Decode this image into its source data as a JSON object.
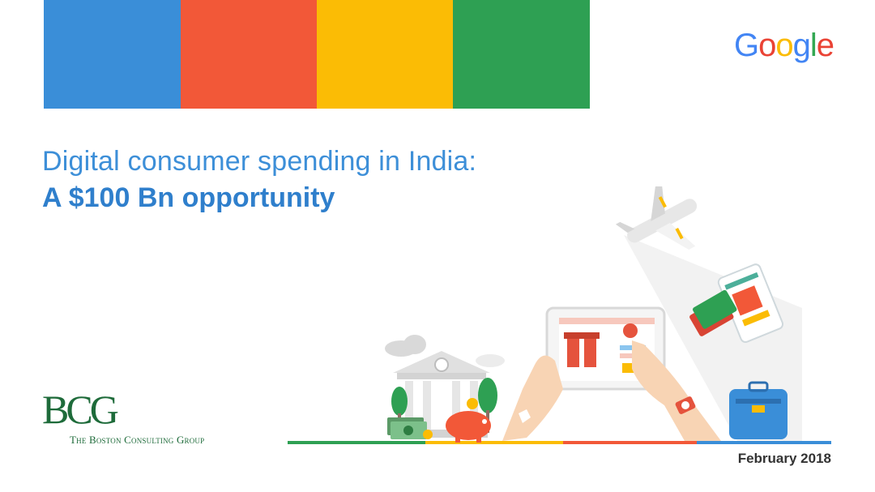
{
  "colors": {
    "blue": "#3a8ed8",
    "red": "#f25838",
    "yellow": "#fbbc05",
    "green": "#2ea053",
    "title_blue": "#3d8fd8",
    "bcg_green": "#1e6b3a"
  },
  "header": {
    "stripes": [
      "blue",
      "red",
      "yellow",
      "green"
    ]
  },
  "logo": {
    "google_letters": [
      {
        "char": "G",
        "color": "#4285f4"
      },
      {
        "char": "o",
        "color": "#ea4335"
      },
      {
        "char": "o",
        "color": "#fbbc05"
      },
      {
        "char": "g",
        "color": "#4285f4"
      },
      {
        "char": "l",
        "color": "#34a853"
      },
      {
        "char": "e",
        "color": "#ea4335"
      }
    ]
  },
  "title": {
    "line1": "Digital consumer spending in India:",
    "line2": "A $100 Bn opportunity"
  },
  "bcg": {
    "mark": "BCG",
    "name": "The Boston Consulting Group"
  },
  "footer": {
    "date": "February 2018"
  },
  "illustration": {
    "icons": [
      "airplane-icon",
      "credit-cards-icon",
      "phone-icon",
      "tablet-icon",
      "gift-icon",
      "cart-icon",
      "bank-icon",
      "rupee-icon",
      "piggy-bank-icon",
      "cash-icon",
      "suitcase-icon",
      "hand-icon",
      "watch-icon",
      "tree-icon",
      "cloud-icon"
    ]
  }
}
